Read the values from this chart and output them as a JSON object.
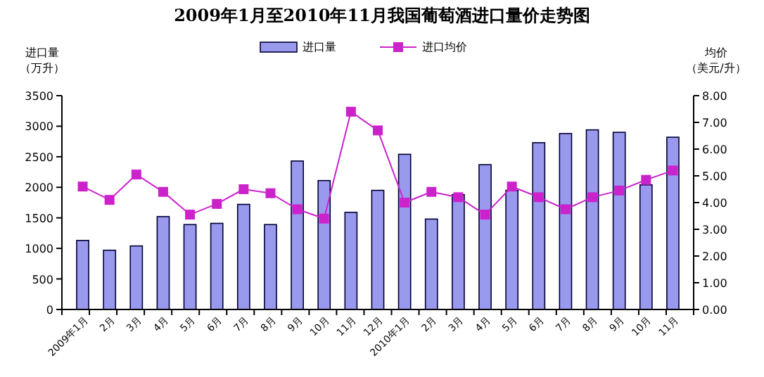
{
  "chart_data": {
    "type": "bar",
    "title": "2009年1月至2010年11月我国葡萄酒进口量价走势图",
    "ylabel": "进口量（万升）",
    "y2label": "均价（美元/升）",
    "categories": [
      "2009年1月",
      "2月",
      "3月",
      "4月",
      "5月",
      "6月",
      "7月",
      "8月",
      "9月",
      "10月",
      "11月",
      "12月",
      "2010年1月",
      "2月",
      "3月",
      "4月",
      "5月",
      "6月",
      "7月",
      "8月",
      "9月",
      "10月",
      "11月"
    ],
    "series": [
      {
        "name": "进口量",
        "color": "#9999ee",
        "values": [
          1130,
          970,
          1040,
          1520,
          1390,
          1410,
          1720,
          1390,
          2430,
          2110,
          1590,
          1950,
          2540,
          1480,
          1880,
          2370,
          1950,
          2730,
          2880,
          2940,
          2900,
          2040,
          2820
        ]
      },
      {
        "name": "进口均价",
        "type": "line",
        "axis": "y2",
        "color": "#cc22cc",
        "marker": "square",
        "values": [
          4.6,
          4.1,
          5.05,
          4.4,
          3.55,
          3.95,
          4.5,
          4.35,
          3.75,
          3.4,
          7.4,
          6.7,
          4.0,
          4.4,
          4.2,
          3.55,
          4.6,
          4.2,
          3.75,
          4.2,
          4.45,
          4.85,
          5.2
        ]
      }
    ],
    "ylim": [
      0,
      3500
    ],
    "yticks": [
      0,
      500,
      1000,
      1500,
      2000,
      2500,
      3000,
      3500
    ],
    "y2lim": [
      0,
      8
    ],
    "y2ticks": [
      {
        "value": 0,
        "label": "0.00"
      },
      {
        "value": 1,
        "label": "1.00"
      },
      {
        "value": 2,
        "label": "2.00"
      },
      {
        "value": 3,
        "label": "3.00"
      },
      {
        "value": 4,
        "label": "4.00"
      },
      {
        "value": 5,
        "label": "5.00"
      },
      {
        "value": 6,
        "label": "6.00"
      },
      {
        "value": 7,
        "label": "7.00"
      },
      {
        "value": 8,
        "label": "8.00"
      }
    ],
    "legend": "top"
  }
}
